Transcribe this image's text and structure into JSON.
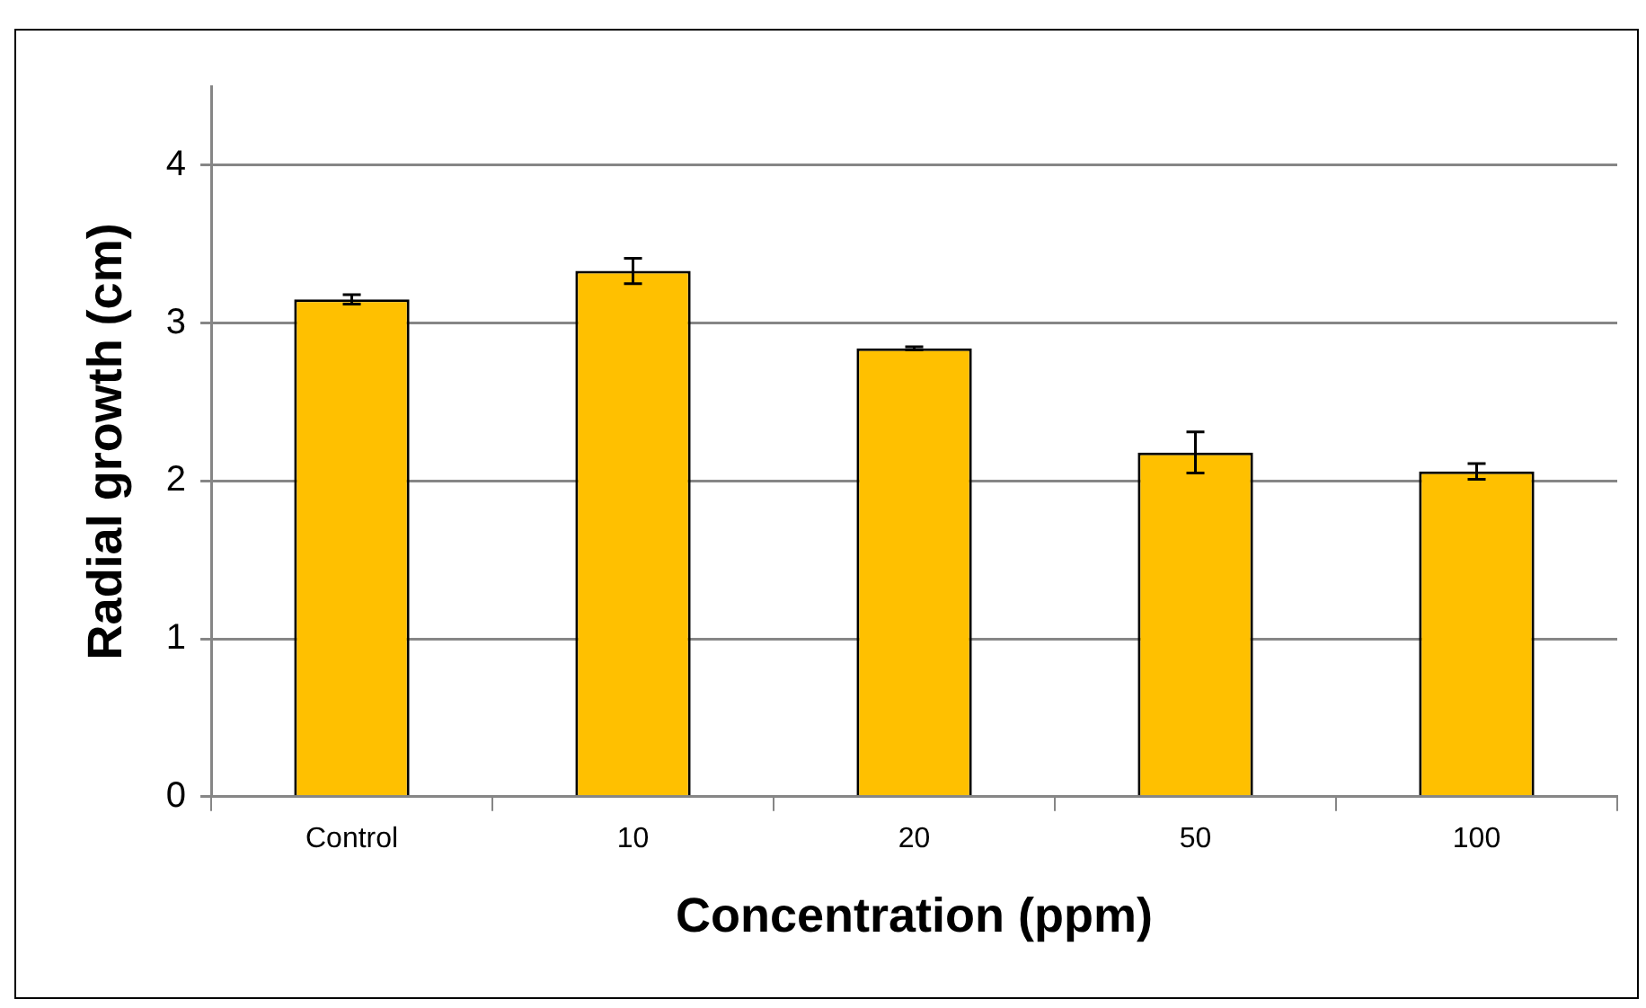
{
  "chart_data": {
    "type": "bar",
    "xlabel": "Concentration (ppm)",
    "ylabel": "Radial growth (cm)",
    "categories": [
      "Control",
      "10",
      "20",
      "50",
      "100"
    ],
    "values": [
      3.15,
      3.33,
      2.84,
      2.18,
      2.06
    ],
    "errors": [
      0.03,
      0.08,
      0.01,
      0.13,
      0.05
    ],
    "color": "#ffc000",
    "ylim": [
      0,
      4.5
    ],
    "yticks": [
      0,
      1,
      2,
      3,
      4
    ],
    "grid": "y",
    "legend": false
  }
}
